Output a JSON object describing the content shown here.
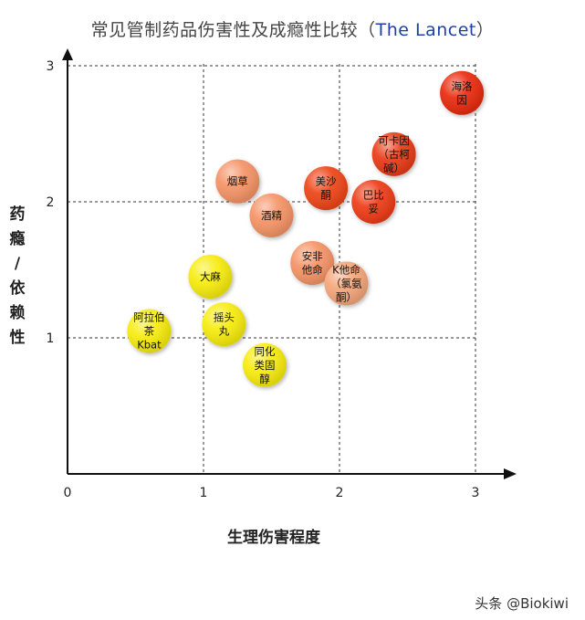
{
  "title": {
    "main": "常见管制药品伤害性及成瘾性比较（",
    "en": "The Lancet",
    "close": "）"
  },
  "watermark": "头条 @Biokiwi",
  "chart_data": {
    "type": "scatter",
    "title": "常见管制药品伤害性及成瘾性比较（The Lancet）",
    "xlabel": "生理伤害程度",
    "ylabel": "药瘾/依赖性",
    "xlim": [
      0,
      3
    ],
    "ylim": [
      0,
      3
    ],
    "xticks": [
      "0",
      "1",
      "2",
      "3"
    ],
    "yticks": [
      "1",
      "2",
      "3"
    ],
    "grid": "dashed",
    "points": [
      {
        "label": [
          "海洛",
          "因"
        ],
        "x": 2.9,
        "y": 2.8,
        "color": "#e82a10"
      },
      {
        "label": [
          "可卡因",
          "（古柯",
          "碱）"
        ],
        "x": 2.4,
        "y": 2.35,
        "color": "#e83a14"
      },
      {
        "label": [
          "美沙",
          "酮"
        ],
        "x": 1.9,
        "y": 2.1,
        "color": "#ee4416"
      },
      {
        "label": [
          "巴比",
          "妥"
        ],
        "x": 2.25,
        "y": 2.0,
        "color": "#ee3a14"
      },
      {
        "label": [
          "烟草"
        ],
        "x": 1.25,
        "y": 2.15,
        "color": "#f59366"
      },
      {
        "label": [
          "酒精"
        ],
        "x": 1.5,
        "y": 1.9,
        "color": "#f59366"
      },
      {
        "label": [
          "安非",
          "他命"
        ],
        "x": 1.8,
        "y": 1.55,
        "color": "#f59366"
      },
      {
        "label": [
          "K他命",
          "（氯氨",
          "酮）"
        ],
        "x": 2.05,
        "y": 1.4,
        "color": "#f5a67a"
      },
      {
        "label": [
          "大麻"
        ],
        "x": 1.05,
        "y": 1.45,
        "color": "#f7ec10"
      },
      {
        "label": [
          "摇头",
          "丸"
        ],
        "x": 1.15,
        "y": 1.1,
        "color": "#f7ec10"
      },
      {
        "label": [
          "阿拉伯",
          "茶",
          "Kbat"
        ],
        "x": 0.6,
        "y": 1.05,
        "color": "#f7ec10"
      },
      {
        "label": [
          "同化",
          "类固",
          "醇"
        ],
        "x": 1.45,
        "y": 0.8,
        "color": "#f7ec10"
      }
    ]
  }
}
